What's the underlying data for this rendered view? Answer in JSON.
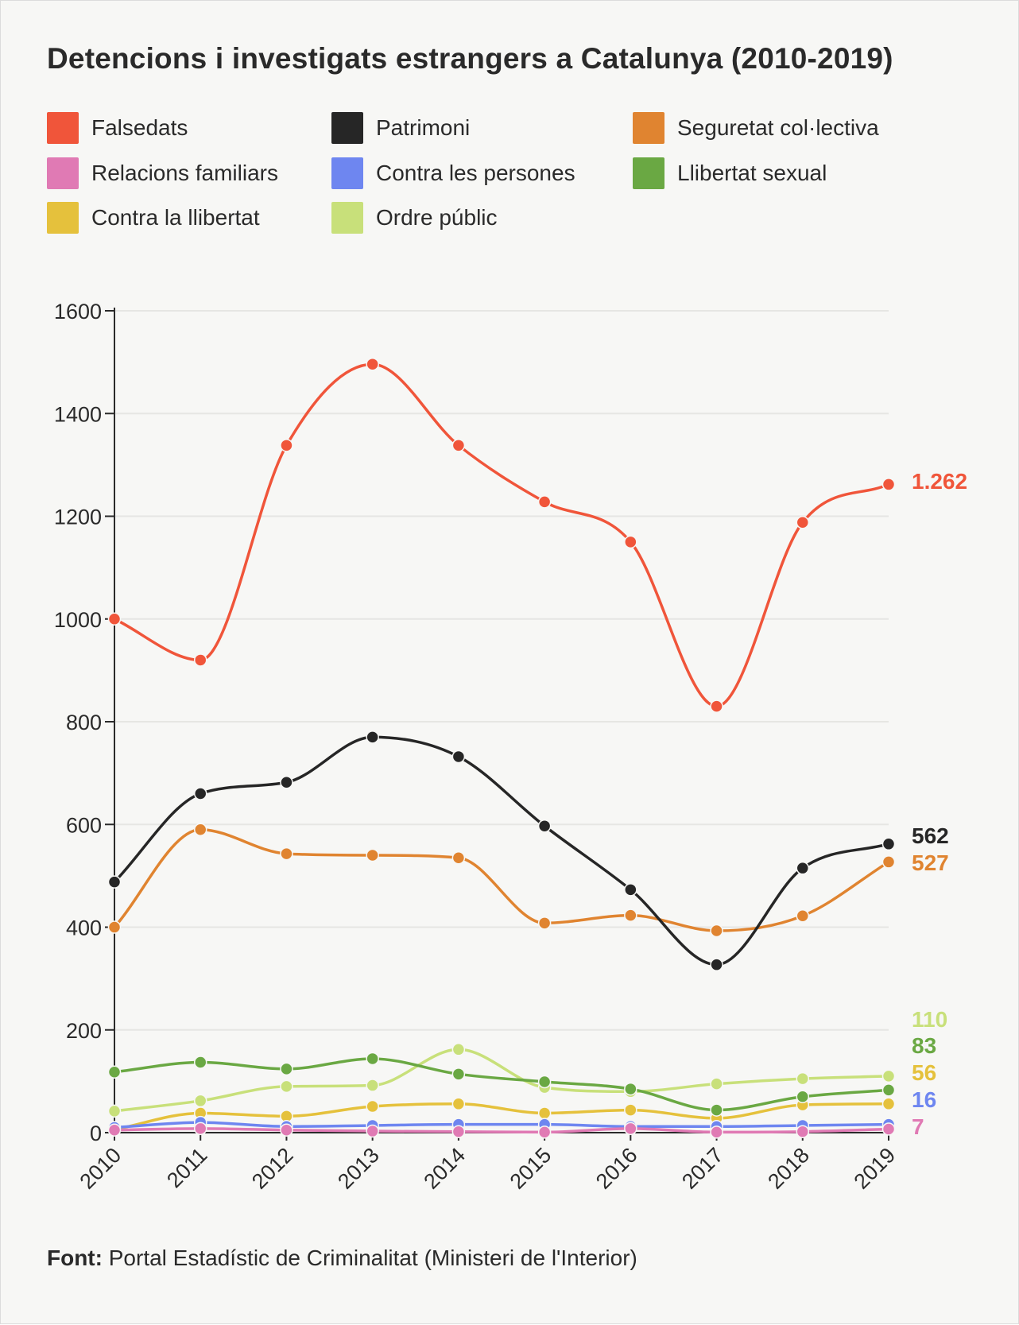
{
  "chart_data": {
    "type": "line",
    "title": "Detencions i investigats estrangers a Catalunya (2010-2019)",
    "xlabel": "",
    "ylabel": "",
    "ylim": [
      0,
      1600
    ],
    "y_ticks": [
      0,
      200,
      400,
      600,
      800,
      1000,
      1200,
      1400,
      1600
    ],
    "categories": [
      "2010",
      "2011",
      "2012",
      "2013",
      "2014",
      "2015",
      "2016",
      "2017",
      "2018",
      "2019"
    ],
    "series": [
      {
        "name": "Falsedats",
        "color": "#f0553a",
        "values": [
          1000,
          920,
          1338,
          1496,
          1338,
          1228,
          1150,
          830,
          1188,
          1262
        ],
        "end_label": "1.262"
      },
      {
        "name": "Patrimoni",
        "color": "#262626",
        "values": [
          488,
          660,
          682,
          770,
          732,
          597,
          473,
          327,
          515,
          562
        ],
        "end_label": "562"
      },
      {
        "name": "Seguretat col·lectiva",
        "color": "#e08430",
        "values": [
          400,
          590,
          543,
          540,
          535,
          408,
          423,
          393,
          422,
          527
        ],
        "end_label": "527"
      },
      {
        "name": "Relacions familiars",
        "color": "#e07ab4",
        "values": [
          5,
          8,
          5,
          3,
          2,
          1,
          8,
          1,
          2,
          7
        ],
        "end_label": "7"
      },
      {
        "name": "Contra les persones",
        "color": "#6e86f0",
        "values": [
          10,
          20,
          12,
          14,
          16,
          16,
          12,
          12,
          14,
          16
        ],
        "end_label": "16"
      },
      {
        "name": "Llibertat sexual",
        "color": "#6aa843",
        "values": [
          118,
          137,
          124,
          144,
          114,
          99,
          85,
          44,
          70,
          83
        ],
        "end_label": "83"
      },
      {
        "name": "Contra la llibertat",
        "color": "#e5c13c",
        "values": [
          6,
          38,
          32,
          51,
          56,
          38,
          44,
          28,
          54,
          56
        ],
        "end_label": "56"
      },
      {
        "name": "Ordre públic",
        "color": "#c8e07a",
        "values": [
          42,
          62,
          90,
          92,
          162,
          88,
          80,
          95,
          105,
          110
        ],
        "end_label": "110"
      }
    ]
  },
  "legend": {
    "items": [
      {
        "label": "Falsedats",
        "color": "#f0553a"
      },
      {
        "label": "Patrimoni",
        "color": "#262626"
      },
      {
        "label": "Seguretat col·lectiva",
        "color": "#e08430"
      },
      {
        "label": "Relacions familiars",
        "color": "#e07ab4"
      },
      {
        "label": "Contra les persones",
        "color": "#6e86f0"
      },
      {
        "label": "Llibertat sexual",
        "color": "#6aa843"
      },
      {
        "label": "Contra la llibertat",
        "color": "#e5c13c"
      },
      {
        "label": "Ordre públic",
        "color": "#c8e07a"
      }
    ]
  },
  "footer": {
    "label": "Font:",
    "text": "Portal Estadístic de Criminalitat (Ministeri de l'Interior)"
  }
}
